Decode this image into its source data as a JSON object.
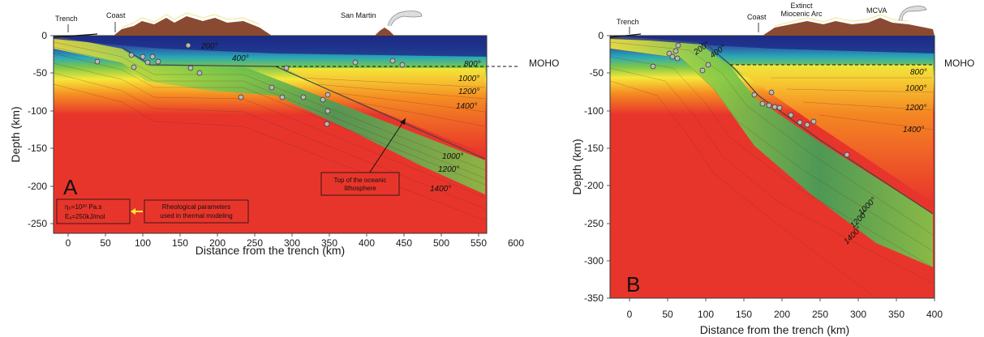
{
  "colors": {
    "hot": "#e8352b",
    "orange": "#f58c22",
    "yellow": "#f6e83a",
    "green": "#7ec849",
    "green_dark": "#3da35a",
    "cyan": "#2aa8b7",
    "blue": "#2c57a8",
    "blue_dark": "#1d2b86",
    "topo": "#8a4a32",
    "topo_light": "#f2efb0"
  },
  "panel_a": {
    "letter": "A",
    "xlabel": "Distance from the trench (km)",
    "ylabel": "Depth (km)",
    "xticks": [
      "0",
      "50",
      "100",
      "150",
      "200",
      "250",
      "300",
      "350",
      "400",
      "450",
      "500",
      "550",
      "600"
    ],
    "yticks": [
      "0",
      "-50",
      "-100",
      "-150",
      "-200",
      "-250"
    ],
    "labels": {
      "trench": "Trench",
      "coast": "Coast",
      "volcano": "San Martin",
      "moho": "MOHO",
      "slab_top_line1": "Top of the oceanic",
      "slab_top_line2": "lithosphere",
      "rheo_line1": "η₀=10²⁰ Pa.s",
      "rheo_line2": "Eₐ=250kJ/mol",
      "rheo_note_line1": "Rheological parameters",
      "rheo_note_line2": "used in thermal modeling"
    },
    "isotherms": [
      "200°",
      "400°",
      "800°",
      "1000°",
      "1200°",
      "1400°",
      "1000°",
      "1200°",
      "1400°"
    ]
  },
  "panel_b": {
    "letter": "B",
    "xlabel": "Distance from the trench (km)",
    "ylabel": "Depth (km)",
    "xticks": [
      "0",
      "50",
      "100",
      "150",
      "200",
      "250",
      "300",
      "350",
      "400"
    ],
    "yticks": [
      "0",
      "-50",
      "-100",
      "-150",
      "-200",
      "-250",
      "-300",
      "-350"
    ],
    "labels": {
      "trench": "Trench",
      "coast": "Coast",
      "arc_line1": "Extinct",
      "arc_line2": "Miocenic Arc",
      "mcva": "MCVA",
      "moho": "MOHO"
    },
    "isotherms": [
      "200°",
      "400°",
      "800°",
      "1000°",
      "1200°",
      "1400°",
      "1000°",
      "1200°",
      "1400°"
    ]
  }
}
